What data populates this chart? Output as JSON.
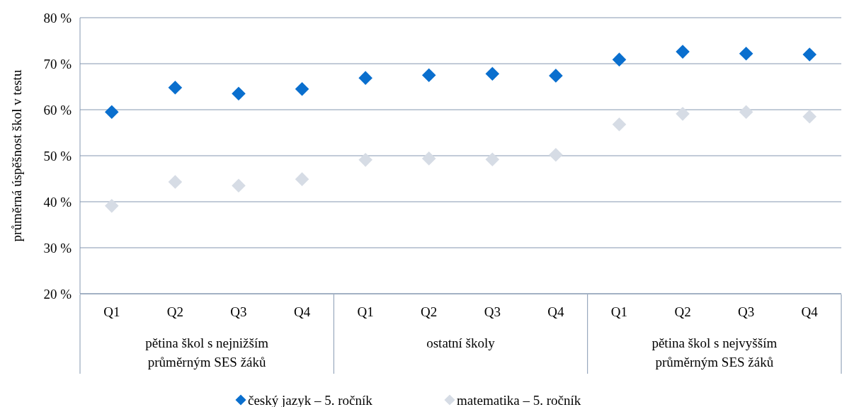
{
  "chart_data": {
    "type": "scatter",
    "ylabel": "průměrná úspěšnost škol v testu",
    "categories": [
      "Q1",
      "Q2",
      "Q3",
      "Q4",
      "Q1",
      "Q2",
      "Q3",
      "Q4",
      "Q1",
      "Q2",
      "Q3",
      "Q4"
    ],
    "annotations": [
      "pětina škol s nejnižším průměrným SES žáků",
      "ostatní školy",
      "pětina škol s nejvyšším průměrným SES žáků"
    ],
    "series": [
      {
        "name": "český jazyk – 5. ročník",
        "color": "#0a6fce",
        "values": [
          59.5,
          64.8,
          63.5,
          64.5,
          66.9,
          67.5,
          67.8,
          67.4,
          70.9,
          72.6,
          72.2,
          72
        ]
      },
      {
        "name": "matematika – 5. ročník",
        "color": "#d6dce5",
        "values": [
          39.1,
          44.3,
          43.5,
          44.9,
          49.1,
          49.4,
          49.2,
          50.2,
          56.8,
          59.1,
          59.5,
          58.5
        ]
      }
    ],
    "ylim": [
      20,
      80
    ],
    "yticks": [
      {
        "value": 20,
        "label": "20 %"
      },
      {
        "value": 30,
        "label": "30 %"
      },
      {
        "value": 40,
        "label": "40 %"
      },
      {
        "value": 50,
        "label": "50 %"
      },
      {
        "value": 60,
        "label": "60 %"
      },
      {
        "value": 70,
        "label": "70 %"
      },
      {
        "value": 80,
        "label": "80 %"
      }
    ],
    "grid": "y",
    "legend": "bottom",
    "marker": "diamond"
  }
}
